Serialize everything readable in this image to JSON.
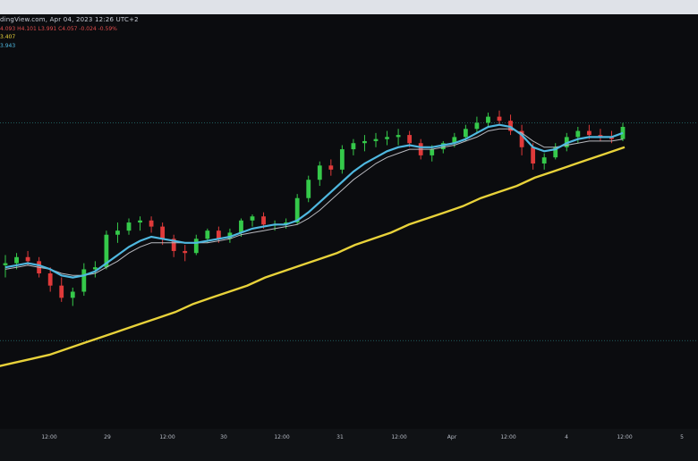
{
  "header": {
    "source_date": "dingView.com, Apr 04, 2023 12:26 UTC+2",
    "ohlc": "4.093 H4.101 L3.991 C4.057 -0.024 -0.59%",
    "indicator_1_value": "3.407",
    "indicator_2_value": "3.943"
  },
  "colors": {
    "background": "#0b0c0f",
    "up_candle": "#35c94a",
    "down_candle": "#e03a3a",
    "ma_fast": "#4fb8e0",
    "ma_mid": "#b8b9bf",
    "ma_slow": "#e8d23a",
    "dotted_level": "#2e8c8c"
  },
  "chart_data": {
    "type": "line",
    "title": "",
    "xlabel": "",
    "ylabel": "",
    "x_ticks": [
      "12:00",
      "29",
      "12:00",
      "30",
      "12:00",
      "31",
      "12:00",
      "Apr",
      "12:00",
      "4",
      "12:00",
      "5"
    ],
    "ylim": [
      2.7,
      4.5
    ],
    "grid": false,
    "reference_levels": [
      4.16,
      3.09
    ],
    "candles": [
      {
        "o": 3.46,
        "h": 3.51,
        "l": 3.4,
        "c": 3.47
      },
      {
        "o": 3.47,
        "h": 3.52,
        "l": 3.44,
        "c": 3.5
      },
      {
        "o": 3.5,
        "h": 3.53,
        "l": 3.46,
        "c": 3.48
      },
      {
        "o": 3.48,
        "h": 3.5,
        "l": 3.4,
        "c": 3.42
      },
      {
        "o": 3.42,
        "h": 3.45,
        "l": 3.33,
        "c": 3.36
      },
      {
        "o": 3.36,
        "h": 3.4,
        "l": 3.28,
        "c": 3.3
      },
      {
        "o": 3.3,
        "h": 3.35,
        "l": 3.26,
        "c": 3.33
      },
      {
        "o": 3.33,
        "h": 3.47,
        "l": 3.31,
        "c": 3.44
      },
      {
        "o": 3.44,
        "h": 3.48,
        "l": 3.4,
        "c": 3.45
      },
      {
        "o": 3.45,
        "h": 3.63,
        "l": 3.44,
        "c": 3.61
      },
      {
        "o": 3.61,
        "h": 3.67,
        "l": 3.57,
        "c": 3.63
      },
      {
        "o": 3.63,
        "h": 3.69,
        "l": 3.61,
        "c": 3.67
      },
      {
        "o": 3.67,
        "h": 3.7,
        "l": 3.63,
        "c": 3.68
      },
      {
        "o": 3.68,
        "h": 3.7,
        "l": 3.62,
        "c": 3.65
      },
      {
        "o": 3.65,
        "h": 3.67,
        "l": 3.56,
        "c": 3.59
      },
      {
        "o": 3.59,
        "h": 3.61,
        "l": 3.5,
        "c": 3.53
      },
      {
        "o": 3.53,
        "h": 3.56,
        "l": 3.48,
        "c": 3.52
      },
      {
        "o": 3.52,
        "h": 3.61,
        "l": 3.51,
        "c": 3.59
      },
      {
        "o": 3.59,
        "h": 3.64,
        "l": 3.57,
        "c": 3.63
      },
      {
        "o": 3.63,
        "h": 3.65,
        "l": 3.57,
        "c": 3.59
      },
      {
        "o": 3.59,
        "h": 3.64,
        "l": 3.57,
        "c": 3.62
      },
      {
        "o": 3.62,
        "h": 3.69,
        "l": 3.6,
        "c": 3.68
      },
      {
        "o": 3.68,
        "h": 3.71,
        "l": 3.65,
        "c": 3.7
      },
      {
        "o": 3.7,
        "h": 3.72,
        "l": 3.64,
        "c": 3.66
      },
      {
        "o": 3.66,
        "h": 3.68,
        "l": 3.63,
        "c": 3.66
      },
      {
        "o": 3.66,
        "h": 3.69,
        "l": 3.64,
        "c": 3.67
      },
      {
        "o": 3.67,
        "h": 3.81,
        "l": 3.66,
        "c": 3.79
      },
      {
        "o": 3.79,
        "h": 3.9,
        "l": 3.77,
        "c": 3.88
      },
      {
        "o": 3.88,
        "h": 3.97,
        "l": 3.85,
        "c": 3.95
      },
      {
        "o": 3.95,
        "h": 3.98,
        "l": 3.9,
        "c": 3.93
      },
      {
        "o": 3.93,
        "h": 4.05,
        "l": 3.91,
        "c": 4.03
      },
      {
        "o": 4.03,
        "h": 4.08,
        "l": 4.0,
        "c": 4.06
      },
      {
        "o": 4.06,
        "h": 4.1,
        "l": 4.02,
        "c": 4.07
      },
      {
        "o": 4.07,
        "h": 4.11,
        "l": 4.04,
        "c": 4.08
      },
      {
        "o": 4.08,
        "h": 4.12,
        "l": 4.05,
        "c": 4.09
      },
      {
        "o": 4.09,
        "h": 4.13,
        "l": 4.05,
        "c": 4.1
      },
      {
        "o": 4.1,
        "h": 4.12,
        "l": 4.04,
        "c": 4.06
      },
      {
        "o": 4.06,
        "h": 4.08,
        "l": 3.98,
        "c": 4.0
      },
      {
        "o": 4.0,
        "h": 4.05,
        "l": 3.97,
        "c": 4.03
      },
      {
        "o": 4.03,
        "h": 4.07,
        "l": 4.01,
        "c": 4.06
      },
      {
        "o": 4.06,
        "h": 4.11,
        "l": 4.04,
        "c": 4.09
      },
      {
        "o": 4.09,
        "h": 4.15,
        "l": 4.07,
        "c": 4.13
      },
      {
        "o": 4.13,
        "h": 4.19,
        "l": 4.11,
        "c": 4.16
      },
      {
        "o": 4.16,
        "h": 4.21,
        "l": 4.14,
        "c": 4.19
      },
      {
        "o": 4.19,
        "h": 4.22,
        "l": 4.15,
        "c": 4.17
      },
      {
        "o": 4.17,
        "h": 4.2,
        "l": 4.1,
        "c": 4.12
      },
      {
        "o": 4.12,
        "h": 4.15,
        "l": 4.0,
        "c": 4.04
      },
      {
        "o": 4.04,
        "h": 4.06,
        "l": 3.93,
        "c": 3.96
      },
      {
        "o": 3.96,
        "h": 4.01,
        "l": 3.93,
        "c": 3.99
      },
      {
        "o": 3.99,
        "h": 4.06,
        "l": 3.98,
        "c": 4.04
      },
      {
        "o": 4.04,
        "h": 4.11,
        "l": 4.02,
        "c": 4.09
      },
      {
        "o": 4.09,
        "h": 4.14,
        "l": 4.06,
        "c": 4.12
      },
      {
        "o": 4.12,
        "h": 4.15,
        "l": 4.08,
        "c": 4.1
      },
      {
        "o": 4.1,
        "h": 4.13,
        "l": 4.07,
        "c": 4.09
      },
      {
        "o": 4.09,
        "h": 4.12,
        "l": 4.06,
        "c": 4.08
      },
      {
        "o": 4.08,
        "h": 4.16,
        "l": 4.07,
        "c": 4.14
      }
    ],
    "series": [
      {
        "values": [
          3.45,
          3.46,
          3.47,
          3.46,
          3.44,
          3.41,
          3.4,
          3.41,
          3.43,
          3.47,
          3.51,
          3.55,
          3.58,
          3.6,
          3.59,
          3.58,
          3.57,
          3.57,
          3.58,
          3.59,
          3.6,
          3.62,
          3.64,
          3.65,
          3.66,
          3.66,
          3.68,
          3.72,
          3.77,
          3.82,
          3.87,
          3.92,
          3.96,
          3.99,
          4.02,
          4.04,
          4.05,
          4.04,
          4.04,
          4.05,
          4.06,
          4.08,
          4.11,
          4.14,
          4.15,
          4.14,
          4.1,
          4.04,
          4.02,
          4.03,
          4.06,
          4.08,
          4.09,
          4.09,
          4.09,
          4.11
        ]
      },
      {
        "values": [
          3.44,
          3.45,
          3.46,
          3.45,
          3.44,
          3.42,
          3.41,
          3.41,
          3.42,
          3.45,
          3.48,
          3.52,
          3.55,
          3.57,
          3.57,
          3.57,
          3.57,
          3.57,
          3.57,
          3.58,
          3.59,
          3.61,
          3.62,
          3.63,
          3.64,
          3.65,
          3.66,
          3.69,
          3.73,
          3.78,
          3.83,
          3.88,
          3.92,
          3.96,
          3.99,
          4.01,
          4.03,
          4.03,
          4.03,
          4.04,
          4.05,
          4.07,
          4.09,
          4.12,
          4.13,
          4.13,
          4.11,
          4.07,
          4.04,
          4.04,
          4.05,
          4.06,
          4.07,
          4.07,
          4.07,
          4.08
        ]
      },
      {
        "values": [
          2.96,
          2.98,
          3.0,
          3.02,
          3.05,
          3.08,
          3.11,
          3.14,
          3.17,
          3.2,
          3.23,
          3.27,
          3.3,
          3.33,
          3.36,
          3.4,
          3.43,
          3.46,
          3.49,
          3.52,
          3.56,
          3.59,
          3.62,
          3.66,
          3.69,
          3.72,
          3.75,
          3.79,
          3.82,
          3.85,
          3.89,
          3.92,
          3.95,
          3.98,
          4.01,
          4.04
        ]
      }
    ]
  }
}
